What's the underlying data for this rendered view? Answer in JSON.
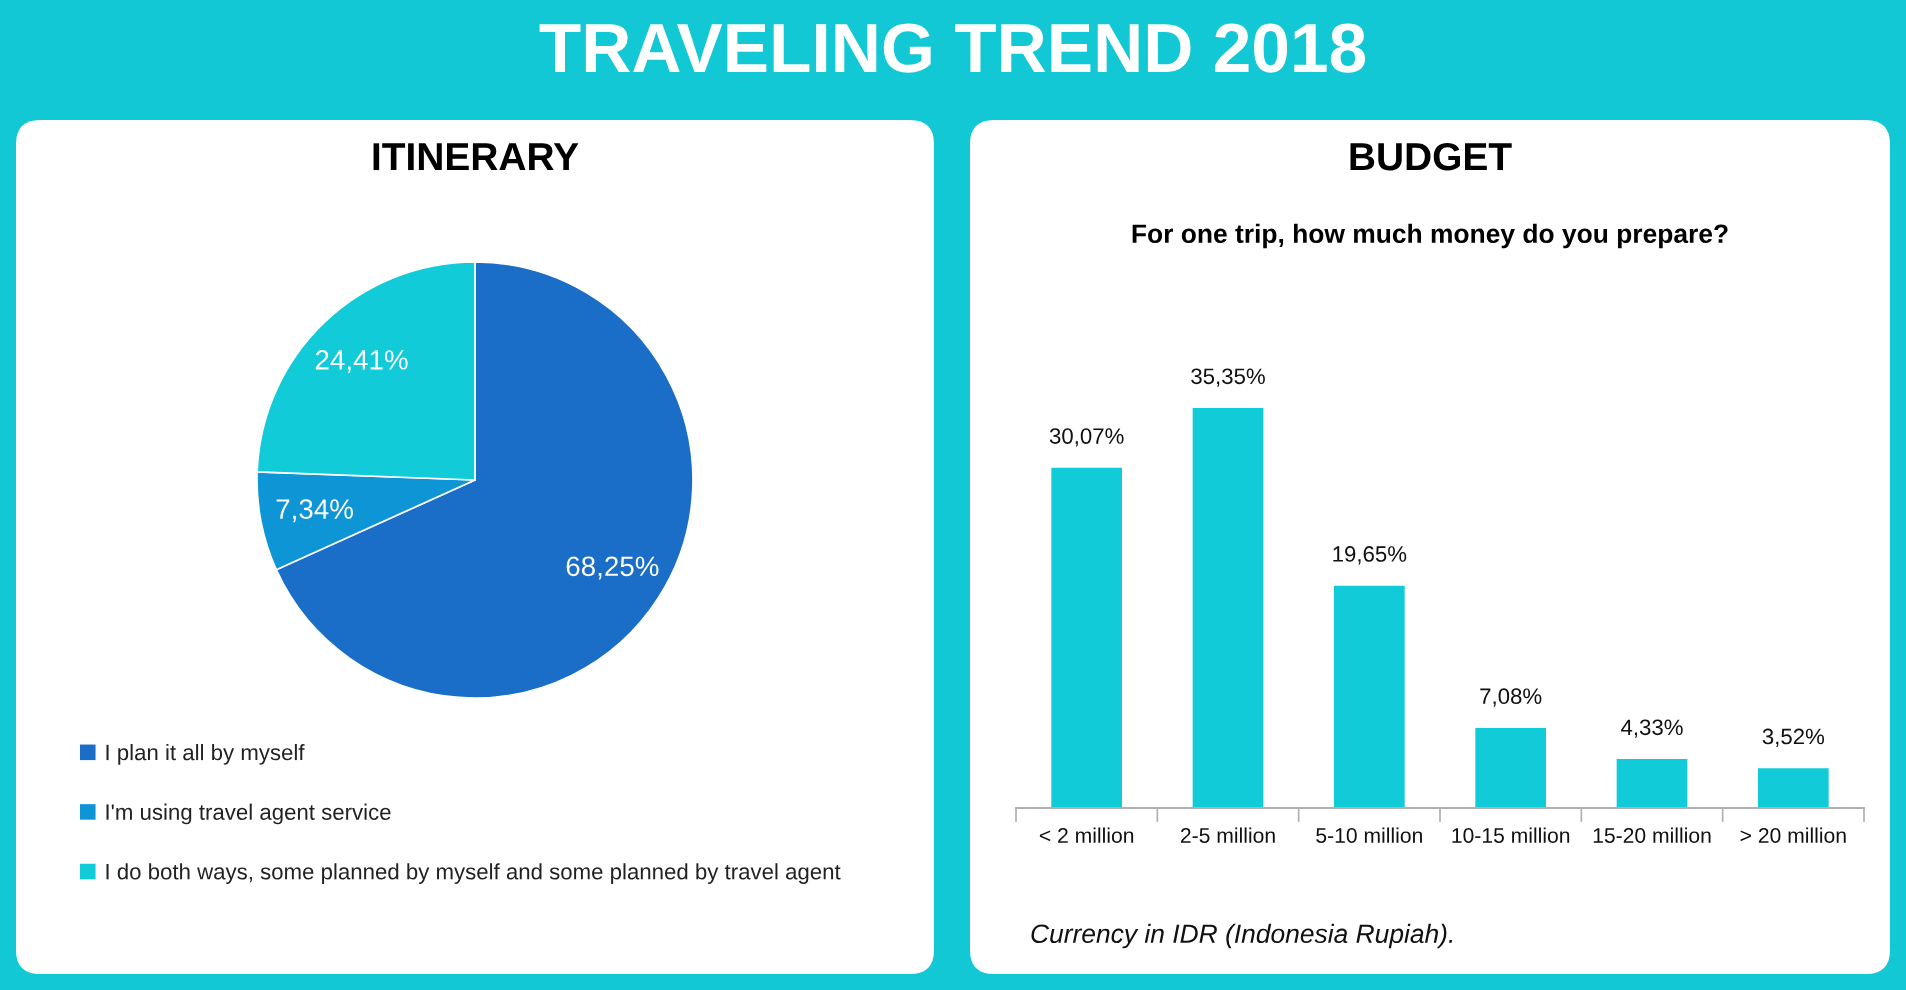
{
  "chart_data": [
    {
      "type": "pie",
      "title": "ITINERARY",
      "annotations": [
        "TRAVELING TREND 2018"
      ],
      "categories": [
        "I plan it all by myself",
        "I'm using travel agent service",
        "I do both ways, some planned by myself and some planned by travel agent"
      ],
      "values": [
        68.25,
        7.34,
        24.41
      ],
      "colors": [
        "#1a6ec8",
        "#0e95d6",
        "#12cbd8"
      ],
      "value_labels": [
        "68,25%",
        "7,34%",
        "24,41%"
      ],
      "legend": "bottom"
    },
    {
      "type": "bar",
      "title": "BUDGET",
      "subtitle": "For one trip, how much money do you prepare?",
      "categories": [
        "< 2 million",
        "2-5 million",
        "5-10 million",
        "10-15 million",
        "15-20 million",
        "> 20 million"
      ],
      "values": [
        30.07,
        35.35,
        19.65,
        7.08,
        4.33,
        3.52
      ],
      "color": "#12cbd8",
      "value_labels": [
        "30,07%",
        "35,35%",
        "19,65%",
        "7,08%",
        "4,33%",
        "3,52%"
      ],
      "annotations": [
        "Currency in IDR (Indonesia Rupiah)."
      ]
    }
  ]
}
